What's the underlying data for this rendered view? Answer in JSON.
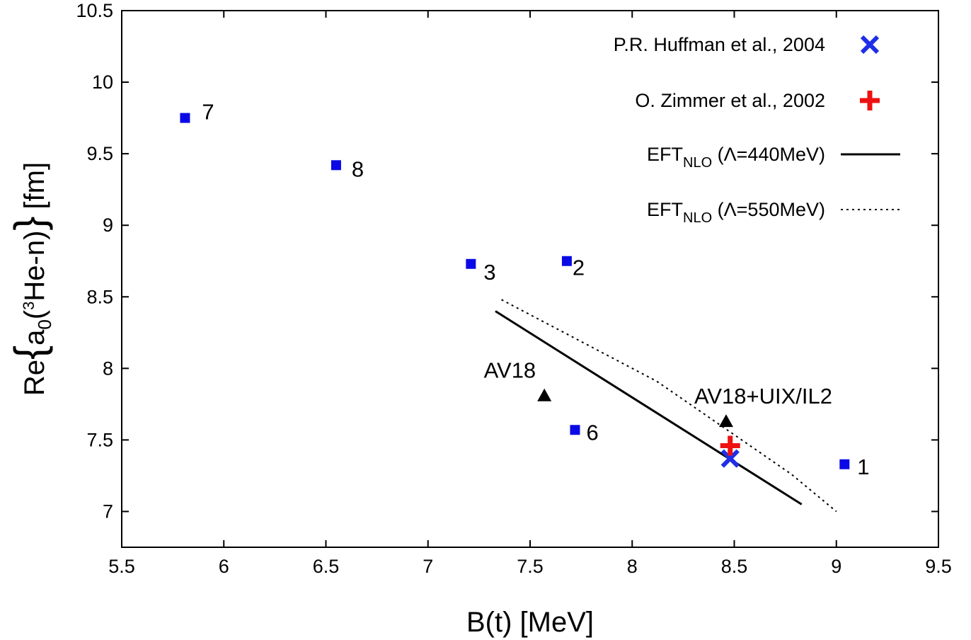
{
  "chart_data": {
    "type": "scatter",
    "title": "",
    "xlabel": "B(t) [MeV]",
    "ylabel": {
      "prefix": "Re",
      "a": "a",
      "sub": "0",
      "open": "(",
      "sup": "3",
      "mid": "He-n)",
      "unit": "[fm]"
    },
    "xlim": [
      5.5,
      9.5
    ],
    "ylim": [
      6.75,
      10.5
    ],
    "grid": false,
    "legend_position": "top-right",
    "x_ticks": [
      "5.5",
      "6",
      "6.5",
      "7",
      "7.5",
      "8",
      "8.5",
      "9",
      "9.5"
    ],
    "y_ticks": [
      "7",
      "7.5",
      "8",
      "8.5",
      "9",
      "9.5",
      "10",
      "10.5"
    ],
    "points": [
      {
        "label": "7",
        "x": 5.81,
        "y": 9.75
      },
      {
        "label": "8",
        "x": 6.55,
        "y": 9.42
      },
      {
        "label": "3",
        "x": 7.21,
        "y": 8.73
      },
      {
        "label": "2",
        "x": 7.68,
        "y": 8.75
      },
      {
        "label": "6",
        "x": 7.72,
        "y": 7.57
      },
      {
        "label": "1",
        "x": 9.04,
        "y": 7.33
      }
    ],
    "triangles": [
      {
        "label": "AV18",
        "x": 7.57,
        "y": 7.81
      },
      {
        "label": "AV18+UIX/IL2",
        "x": 8.46,
        "y": 7.63
      }
    ],
    "experiments": [
      {
        "name": "P.R. Huffman et al., 2004",
        "marker": "x",
        "color": "#1f2ee6",
        "x": 8.48,
        "y": 7.37
      },
      {
        "name": "O. Zimmer et al., 2002",
        "marker": "plus",
        "color": "#ee1111",
        "x": 8.48,
        "y": 7.46
      }
    ],
    "lines": [
      {
        "name_main": "EFT",
        "name_sub": "NLO",
        "name_rest": " (Λ=440MeV)",
        "style": "solid",
        "x": [
          7.33,
          8.83
        ],
        "y": [
          8.4,
          7.05
        ]
      },
      {
        "name_main": "EFT",
        "name_sub": "NLO",
        "name_rest": " (Λ=550MeV)",
        "style": "dotted",
        "x": [
          7.36,
          8.12,
          8.78,
          9.0
        ],
        "y": [
          8.48,
          7.91,
          7.26,
          7.0
        ]
      }
    ],
    "colors": {
      "points": "#0a0ae6",
      "triangles": "#000000",
      "lines": "#000000"
    }
  }
}
